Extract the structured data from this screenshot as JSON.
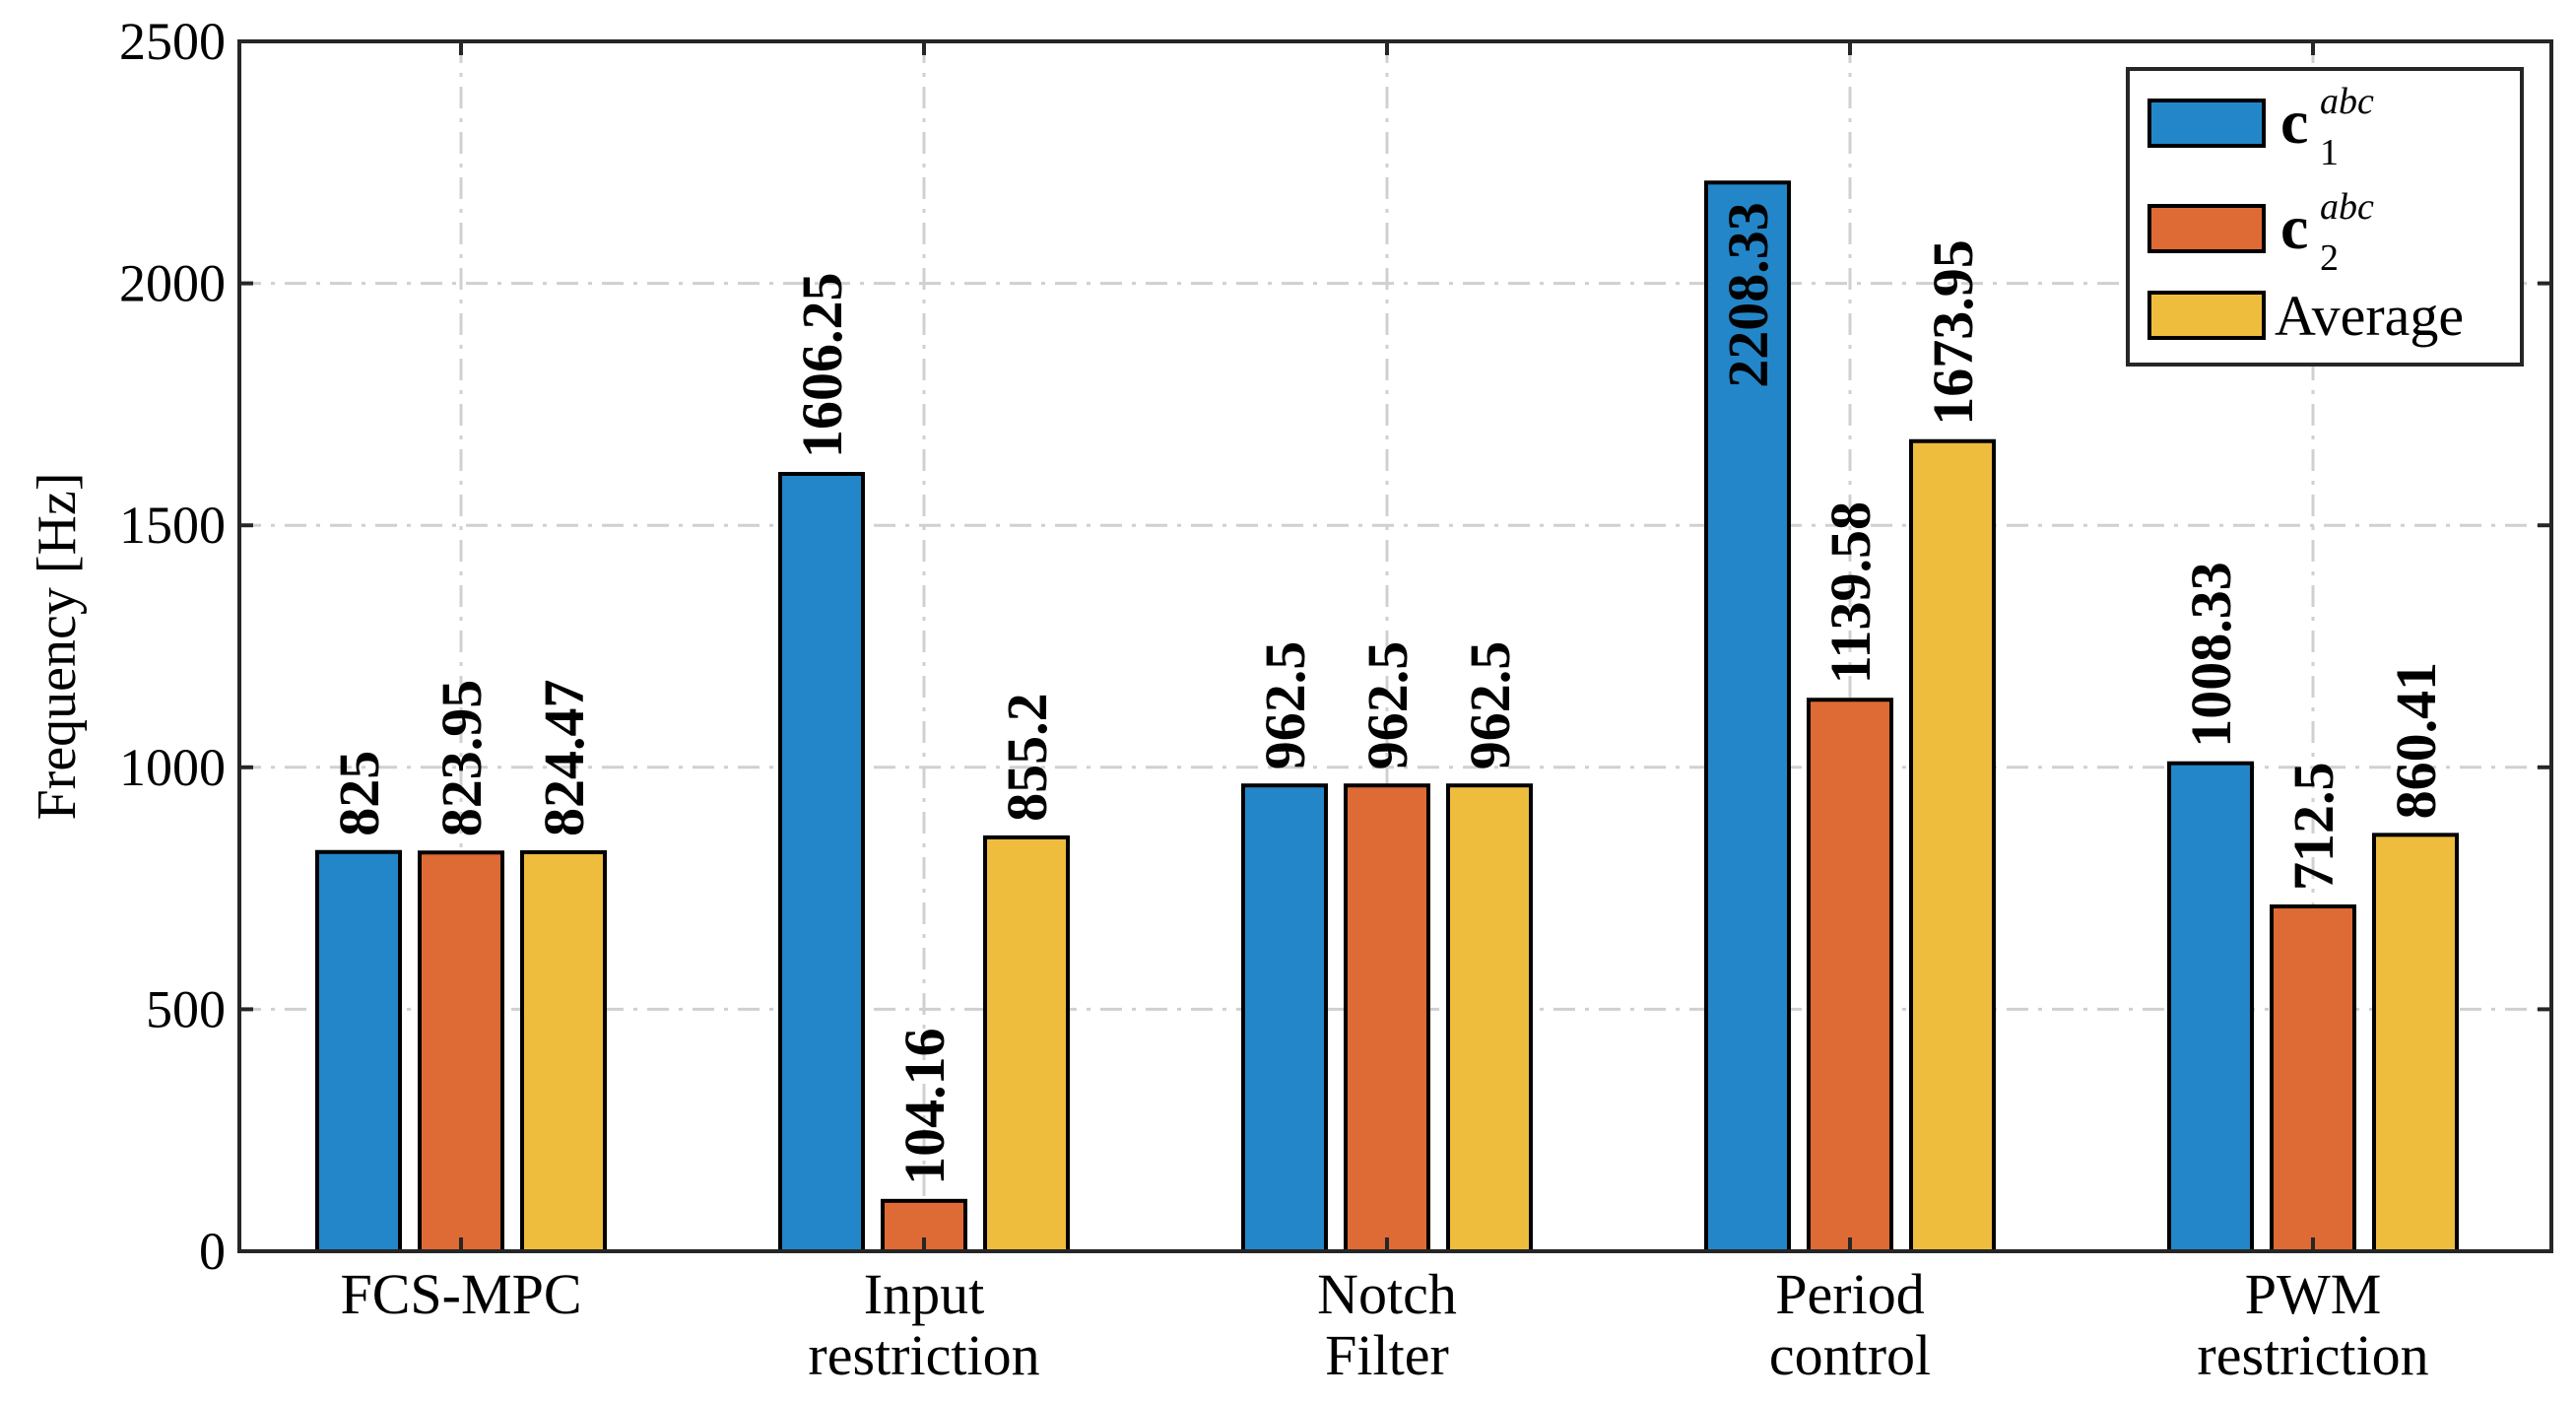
{
  "chart_data": {
    "type": "bar",
    "title": "",
    "xlabel": "",
    "ylabel": "Frequency [Hz]",
    "ylim": [
      0,
      2500
    ],
    "yticks": [
      0,
      500,
      1000,
      1500,
      2000,
      2500
    ],
    "grid": true,
    "legend_position": "top-right",
    "categories": [
      [
        "FCS-MPC"
      ],
      [
        "Input",
        "restriction"
      ],
      [
        "Notch",
        "Filter"
      ],
      [
        "Period",
        "control"
      ],
      [
        "PWM",
        "restriction"
      ]
    ],
    "series": [
      {
        "name": "c1abc",
        "legend_base": "c",
        "legend_sub": "1",
        "legend_sup": "abc",
        "color": "#2386C8",
        "values": [
          825,
          1606.25,
          962.5,
          2208.33,
          1008.33
        ],
        "labels": [
          "825",
          "1606.25",
          "962.5",
          "2208.33",
          "1008.33"
        ]
      },
      {
        "name": "c2abc",
        "legend_base": "c",
        "legend_sub": "2",
        "legend_sup": "abc",
        "color": "#DE6A35",
        "values": [
          823.95,
          104.16,
          962.5,
          1139.58,
          712.5
        ],
        "labels": [
          "823.95",
          "104.16",
          "962.5",
          "1139.58",
          "712.5"
        ]
      },
      {
        "name": "Average",
        "legend_base": "Average",
        "legend_sub": "",
        "legend_sup": "",
        "color": "#EEBD3E",
        "values": [
          824.47,
          855.2,
          962.5,
          1673.95,
          860.41
        ],
        "labels": [
          "824.47",
          "855.2",
          "962.5",
          "1673.95",
          "860.41"
        ]
      }
    ]
  }
}
